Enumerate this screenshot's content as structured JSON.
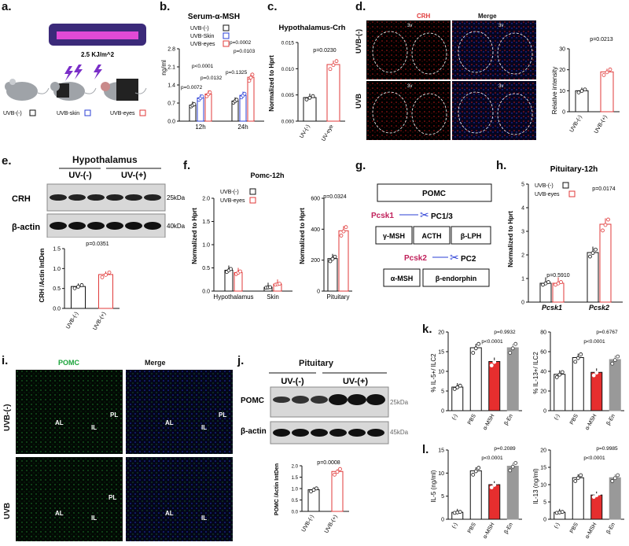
{
  "panels": {
    "a": {
      "letter": "a.",
      "energy": "2.5 KJ/m^2",
      "groups": [
        "UVB-(-)",
        "UVB-skin",
        "UVB-eyes"
      ]
    },
    "b": {
      "letter": "b.",
      "title": "Serum-α-MSH",
      "ylabel": "ng/ml",
      "legend": [
        "UVB-(-)",
        "UVB-Skin",
        "UVB-eyes"
      ],
      "pvals": [
        "p<0.0001",
        "p=0.0072",
        "p=0.0132",
        "p=0.0002",
        "p=0.0103",
        "p=0.1325"
      ],
      "xticks": [
        "12h",
        "24h"
      ],
      "yticks": [
        "0.0",
        "0.7",
        "1.4",
        "2.1",
        "2.8"
      ]
    },
    "c": {
      "letter": "c.",
      "title": "Hypothalamus-Crh",
      "ylabel": "Normalized to Hprt",
      "pval": "p=0.0230",
      "xticks": [
        "UV-(-)",
        "UV-eye"
      ],
      "yticks": [
        "0.000",
        "0.005",
        "0.010",
        "0.015"
      ]
    },
    "d": {
      "letter": "d.",
      "col_crh": "CRH",
      "col_merge": "Merge",
      "row1": "UVB-(-)",
      "row2": "UVB",
      "v3": "3v",
      "pval": "p=0.0213",
      "ylabel": "Relative intensity",
      "xticks": [
        "UVB-(-)",
        "UVB-(+)"
      ],
      "yticks": [
        "0",
        "10",
        "20",
        "30"
      ]
    },
    "e": {
      "letter": "e.",
      "title": "Hypothalamus",
      "g1": "UV-(-)",
      "g2": "UV-(+)",
      "band1": "CRH",
      "band2": "β-actin",
      "kda1": "25kDa",
      "kda2": "40kDa",
      "pval": "p=0.0351",
      "ylabel": "CRH /Actin IntDen",
      "xticks": [
        "UVB-(-)",
        "UVB-(+)"
      ],
      "yticks": [
        "0.0",
        "0.5",
        "1.0",
        "1.5"
      ]
    },
    "f": {
      "letter": "f.",
      "title": "Pomc-12h",
      "legend": [
        "UVB-(-)",
        "UVB-eyes"
      ],
      "ylabel": "Normalized to Hprt",
      "xticks": [
        "Hypothalamus",
        "Skin"
      ],
      "yticks": [
        "0.0",
        "0.5",
        "1.0",
        "1.5",
        "2.0"
      ],
      "pval": "p=0.0324",
      "xticks2": [
        "Pituitary"
      ],
      "yticks2": [
        "0",
        "200",
        "400",
        "600"
      ]
    },
    "g": {
      "letter": "g.",
      "pomc": "POMC",
      "pcsk1": "Pcsk1",
      "pc13": "PC1/3",
      "gmsh": "γ-MSH",
      "acth": "ACTH",
      "blph": "β-LPH",
      "pcsk2": "Pcsk2",
      "pc2": "PC2",
      "amsh": "α-MSH",
      "bend": "β-endorphin"
    },
    "h": {
      "letter": "h.",
      "title": "Pituitary-12h",
      "legend": [
        "UVB-(-)",
        "UVB-eyes"
      ],
      "ylabel": "Normalized to Hprt",
      "pvals": [
        "p=0.5910",
        "p=0.0174"
      ],
      "xticks": [
        "Pcsk1",
        "Pcsk2"
      ],
      "yticks": [
        "0",
        "1",
        "2",
        "3",
        "4",
        "5"
      ]
    },
    "i": {
      "letter": "i.",
      "col1": "POMC",
      "col2": "Merge",
      "row1": "UVB-(-)",
      "row2": "UVB",
      "AL": "AL",
      "IL": "IL",
      "PL": "PL"
    },
    "j": {
      "letter": "j.",
      "title": "Pituitary",
      "g1": "UV-(-)",
      "g2": "UV-(+)",
      "band1": "POMC",
      "band2": "β-actin",
      "kda1": "25kDa",
      "kda2": "45kDa",
      "pval": "p=0.0008",
      "ylabel": "POMC /Actin IntDen",
      "xticks": [
        "UVB-(-)",
        "UVB-(+)"
      ],
      "yticks": [
        "0.0",
        "0.5",
        "1.0",
        "1.5",
        "2.0"
      ]
    },
    "k": {
      "letter": "k.",
      "left": {
        "ylabel": "% IL-5+/ ILC2",
        "pvals": [
          "p=0.9932",
          "p<0.0001"
        ],
        "yticks": [
          "0",
          "5",
          "10",
          "15",
          "20"
        ]
      },
      "right": {
        "ylabel": "% IL-13+/ ILC2",
        "pvals": [
          "p=0.6767",
          "p<0.0001"
        ],
        "yticks": [
          "0",
          "20",
          "40",
          "60",
          "80"
        ]
      },
      "xticks": [
        "(-)",
        "PBS",
        "α-MSH",
        "β-En"
      ]
    },
    "l": {
      "letter": "l.",
      "left": {
        "ylabel": "IL-5 (ng/ml)",
        "pvals": [
          "p=0.2089",
          "p<0.0001"
        ],
        "yticks": [
          "0",
          "5",
          "10",
          "15"
        ]
      },
      "right": {
        "ylabel": "IL-13 (ng/ml)",
        "pvals": [
          "p=0.9985",
          "p<0.0001"
        ],
        "yticks": [
          "0",
          "5",
          "10",
          "15",
          "20"
        ]
      },
      "xticks": [
        "(-)",
        "PBS",
        "α-MSH",
        "β-En"
      ]
    }
  },
  "chart_data": [
    {
      "id": "b",
      "type": "bar",
      "categories": [
        "12h",
        "24h"
      ],
      "series": [
        {
          "name": "UVB-(-)",
          "values": [
            0.62,
            0.78
          ]
        },
        {
          "name": "UVB-Skin",
          "values": [
            0.9,
            1.0
          ]
        },
        {
          "name": "UVB-eyes",
          "values": [
            1.05,
            1.7
          ]
        }
      ],
      "ylim": [
        0,
        2.8
      ]
    },
    {
      "id": "c",
      "type": "bar",
      "categories": [
        "UV-(-)",
        "UV-eye"
      ],
      "values": [
        0.0045,
        0.0108
      ],
      "ylim": [
        0,
        0.015
      ]
    },
    {
      "id": "d",
      "type": "bar",
      "categories": [
        "UVB-(-)",
        "UVB-(+)"
      ],
      "values": [
        10,
        19
      ],
      "ylim": [
        0,
        30
      ]
    },
    {
      "id": "e",
      "type": "bar",
      "categories": [
        "UVB-(-)",
        "UVB-(+)"
      ],
      "values": [
        0.55,
        0.85
      ],
      "ylim": [
        0,
        1.5
      ]
    },
    {
      "id": "f1",
      "type": "bar",
      "categories": [
        "Hypothalamus",
        "Skin"
      ],
      "series": [
        {
          "name": "UVB-(-)",
          "values": [
            0.45,
            0.08
          ]
        },
        {
          "name": "UVB-eyes",
          "values": [
            0.4,
            0.15
          ]
        }
      ],
      "ylim": [
        0,
        2.0
      ]
    },
    {
      "id": "f2",
      "type": "bar",
      "categories": [
        "Pituitary"
      ],
      "series": [
        {
          "name": "UVB-(-)",
          "values": [
            210
          ]
        },
        {
          "name": "UVB-eyes",
          "values": [
            390
          ]
        }
      ],
      "ylim": [
        0,
        600
      ]
    },
    {
      "id": "h",
      "type": "bar",
      "categories": [
        "Pcsk1",
        "Pcsk2"
      ],
      "series": [
        {
          "name": "UVB-(-)",
          "values": [
            0.8,
            2.1
          ]
        },
        {
          "name": "UVB-eyes",
          "values": [
            0.8,
            3.3
          ]
        }
      ],
      "ylim": [
        0,
        5
      ]
    },
    {
      "id": "j",
      "type": "bar",
      "categories": [
        "UVB-(-)",
        "UVB-(+)"
      ],
      "values": [
        0.95,
        1.75
      ],
      "ylim": [
        0,
        2.0
      ]
    },
    {
      "id": "k1",
      "type": "bar",
      "categories": [
        "(-)",
        "PBS",
        "α-MSH",
        "β-En"
      ],
      "values": [
        6,
        16,
        12.5,
        16
      ],
      "ylim": [
        0,
        20
      ]
    },
    {
      "id": "k2",
      "type": "bar",
      "categories": [
        "(-)",
        "PBS",
        "α-MSH",
        "β-En"
      ],
      "values": [
        37,
        54,
        39,
        52
      ],
      "ylim": [
        0,
        80
      ]
    },
    {
      "id": "l1",
      "type": "bar",
      "categories": [
        "(-)",
        "PBS",
        "α-MSH",
        "β-En"
      ],
      "values": [
        1.5,
        10.5,
        7.5,
        11.5
      ],
      "ylim": [
        0,
        15
      ]
    },
    {
      "id": "l2",
      "type": "bar",
      "categories": [
        "(-)",
        "PBS",
        "α-MSH",
        "β-En"
      ],
      "values": [
        2,
        12,
        7,
        12
      ],
      "ylim": [
        0,
        20
      ]
    }
  ]
}
